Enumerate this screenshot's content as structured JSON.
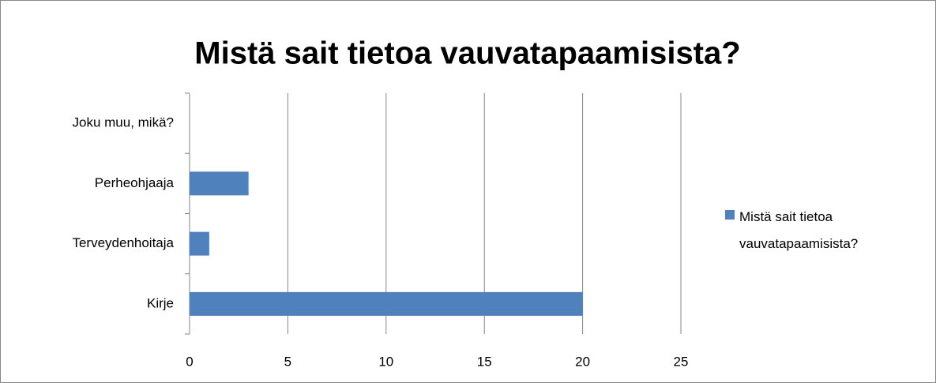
{
  "chart_data": {
    "type": "bar",
    "orientation": "horizontal",
    "title": "Mistä sait tietoa vauvatapaamisista?",
    "categories": [
      "Kirje",
      "Terveydenhoitaja",
      "Perheohjaaja",
      "Joku muu, mikä?"
    ],
    "series": [
      {
        "name": "Mistä sait tietoa vauvatapaamisista?",
        "color": "#4f81bd",
        "values": [
          20,
          1,
          3,
          0
        ]
      }
    ],
    "xlim": [
      0,
      25
    ],
    "xticks": [
      0,
      5,
      10,
      15,
      20,
      25
    ],
    "grid": true,
    "legend": "right"
  }
}
